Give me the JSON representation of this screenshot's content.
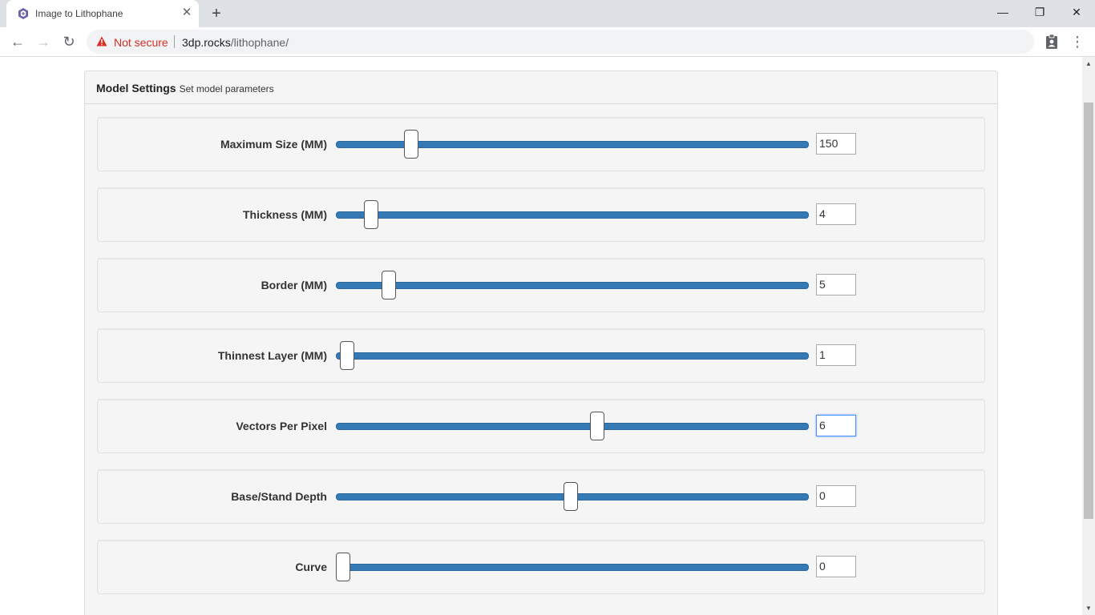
{
  "browser": {
    "tab_title": "Image to Lithophane",
    "tab_close": "✕",
    "new_tab": "+",
    "security_label": "Not secure",
    "url_host": "3dp.rocks",
    "url_path": "/lithophane/",
    "window": {
      "minimize": "—",
      "restore": "❐",
      "close": "✕"
    },
    "nav": {
      "back": "←",
      "forward": "→",
      "reload": "↻"
    },
    "menu": "⋮"
  },
  "panel": {
    "title": "Model Settings",
    "subtitle": "Set model parameters"
  },
  "settings": [
    {
      "label": "Maximum Size (MM)",
      "value": "150",
      "slider_fraction": 0.16
    },
    {
      "label": "Thickness (MM)",
      "value": "4",
      "slider_fraction": 0.075
    },
    {
      "label": "Border (MM)",
      "value": "5",
      "slider_fraction": 0.112
    },
    {
      "label": "Thinnest Layer (MM)",
      "value": "1",
      "slider_fraction": 0.024
    },
    {
      "label": "Vectors Per Pixel",
      "value": "6",
      "slider_fraction": 0.553,
      "focused": true
    },
    {
      "label": "Base/Stand Depth",
      "value": "0",
      "slider_fraction": 0.497
    },
    {
      "label": "Curve",
      "value": "0",
      "slider_fraction": 0.015
    }
  ],
  "colors": {
    "slider_track": "#337ab7",
    "not_secure": "#d93025",
    "focus_border": "#4d90fe"
  },
  "icons": {
    "favicon": "hexagon-logo-icon",
    "security": "warning-triangle-icon",
    "extension": "clipboard-account-icon"
  }
}
